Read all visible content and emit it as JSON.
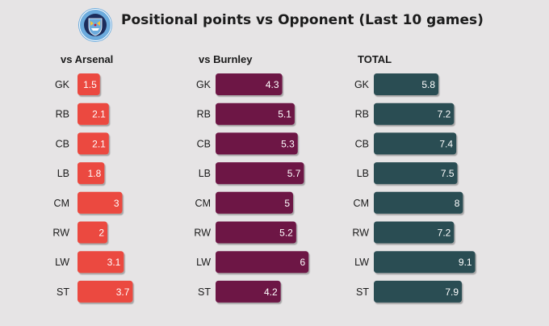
{
  "header": {
    "title": "Positional points vs Opponent (Last 10 games)",
    "badge_text": "MANCHESTER CITY"
  },
  "chart_data": [
    {
      "type": "bar",
      "orientation": "horizontal",
      "title": "vs Arsenal",
      "categories": [
        "GK",
        "RB",
        "CB",
        "LB",
        "CM",
        "RW",
        "LW",
        "ST"
      ],
      "values": [
        1.5,
        2.1,
        2.1,
        1.8,
        3,
        2,
        3.1,
        3.7
      ],
      "value_labels": [
        "1.5",
        "2.1",
        "2.1",
        "1.8",
        "3",
        "2",
        "3.1",
        "3.7"
      ],
      "color": "#eb4a3f",
      "shadow_color": "#c23a31"
    },
    {
      "type": "bar",
      "orientation": "horizontal",
      "title": "vs Burnley",
      "categories": [
        "GK",
        "RB",
        "CB",
        "LB",
        "CM",
        "RW",
        "LW",
        "ST"
      ],
      "values": [
        4.3,
        5.1,
        5.3,
        5.7,
        5,
        5.2,
        6,
        4.2
      ],
      "value_labels": [
        "4.3",
        "5.1",
        "5.3",
        "5.7",
        "5",
        "5.2",
        "6",
        "4.2"
      ],
      "color": "#6d1545",
      "shadow_color": "#4e0d30"
    },
    {
      "type": "bar",
      "orientation": "horizontal",
      "title": "TOTAL",
      "categories": [
        "GK",
        "RB",
        "CB",
        "LB",
        "CM",
        "RW",
        "LW",
        "ST"
      ],
      "values": [
        5.8,
        7.2,
        7.4,
        7.5,
        8,
        7.2,
        9.1,
        7.9
      ],
      "value_labels": [
        "5.8",
        "7.2",
        "7.4",
        "7.5",
        "8",
        "7.2",
        "9.1",
        "7.9"
      ],
      "color": "#2a4d52",
      "shadow_color": "#1b3538"
    }
  ]
}
